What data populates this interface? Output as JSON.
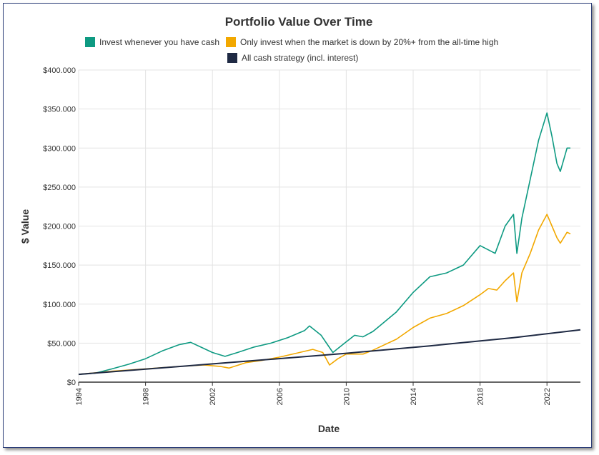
{
  "chart_data": {
    "type": "line",
    "title": "Portfolio Value Over Time",
    "xlabel": "Date",
    "ylabel": "$ Value",
    "xlim": [
      1994,
      2024
    ],
    "ylim": [
      0,
      400000
    ],
    "x_ticks": [
      "1994",
      "1998",
      "2002",
      "2006",
      "2010",
      "2014",
      "2018",
      "2022"
    ],
    "y_ticks": [
      "$0",
      "$50.000",
      "$100.000",
      "$150.000",
      "$200.000",
      "$250.000",
      "$300.000",
      "$350.000",
      "$400.000"
    ],
    "grid": true,
    "legend_placement": "top",
    "series": [
      {
        "name": "Invest whenever you have cash",
        "color": "#0e9a82",
        "x": [
          1994.0,
          1995.0,
          1996.0,
          1997.0,
          1998.0,
          1999.0,
          2000.0,
          2000.7,
          2001.5,
          2002.0,
          2002.75,
          2003.5,
          2004.5,
          2005.5,
          2006.5,
          2007.5,
          2007.8,
          2008.5,
          2009.2,
          2009.9,
          2010.5,
          2011.0,
          2011.6,
          2012.0,
          2013.0,
          2014.0,
          2015.0,
          2016.0,
          2017.0,
          2018.0,
          2018.9,
          2019.5,
          2020.0,
          2020.2,
          2020.5,
          2021.0,
          2021.5,
          2022.0,
          2022.3,
          2022.6,
          2022.8,
          2023.2,
          2023.4
        ],
        "values": [
          10000,
          11500,
          17000,
          23000,
          30000,
          40000,
          48000,
          51000,
          43000,
          38000,
          33000,
          38000,
          45000,
          50000,
          57000,
          66000,
          72000,
          60000,
          38000,
          50000,
          60000,
          58000,
          65000,
          72000,
          90000,
          115000,
          135000,
          140000,
          150000,
          175000,
          165000,
          200000,
          215000,
          165000,
          210000,
          260000,
          310000,
          345000,
          315000,
          280000,
          270000,
          300000,
          300000
        ]
      },
      {
        "name": "Only invest when the market is down by 20%+ from the all-time high",
        "color": "#f2a800",
        "x": [
          1994.0,
          1996.0,
          1998.0,
          2000.0,
          2001.5,
          2002.0,
          2002.5,
          2003.0,
          2004.0,
          2005.0,
          2006.0,
          2007.0,
          2008.0,
          2008.6,
          2009.0,
          2009.5,
          2010.0,
          2011.0,
          2011.5,
          2012.0,
          2013.0,
          2014.0,
          2015.0,
          2016.0,
          2017.0,
          2018.0,
          2018.5,
          2019.0,
          2019.5,
          2020.0,
          2020.2,
          2020.5,
          2021.0,
          2021.5,
          2022.0,
          2022.3,
          2022.6,
          2022.8,
          2023.2,
          2023.4
        ],
        "values": [
          10000,
          14000,
          17000,
          20000,
          22000,
          21000,
          20000,
          18000,
          25000,
          28000,
          32000,
          37000,
          42000,
          38000,
          22000,
          30000,
          36000,
          36000,
          40000,
          45000,
          55000,
          70000,
          82000,
          88000,
          98000,
          112000,
          120000,
          118000,
          130000,
          140000,
          103000,
          140000,
          165000,
          195000,
          215000,
          200000,
          185000,
          178000,
          192000,
          190000
        ]
      },
      {
        "name": "All cash strategy (incl. interest)",
        "color": "#1f2a44",
        "x": [
          1994.0,
          2000.0,
          2005.0,
          2010.0,
          2015.0,
          2020.0,
          2024.0
        ],
        "values": [
          10000,
          20000,
          28500,
          37000,
          46500,
          57000,
          67000
        ]
      }
    ]
  }
}
